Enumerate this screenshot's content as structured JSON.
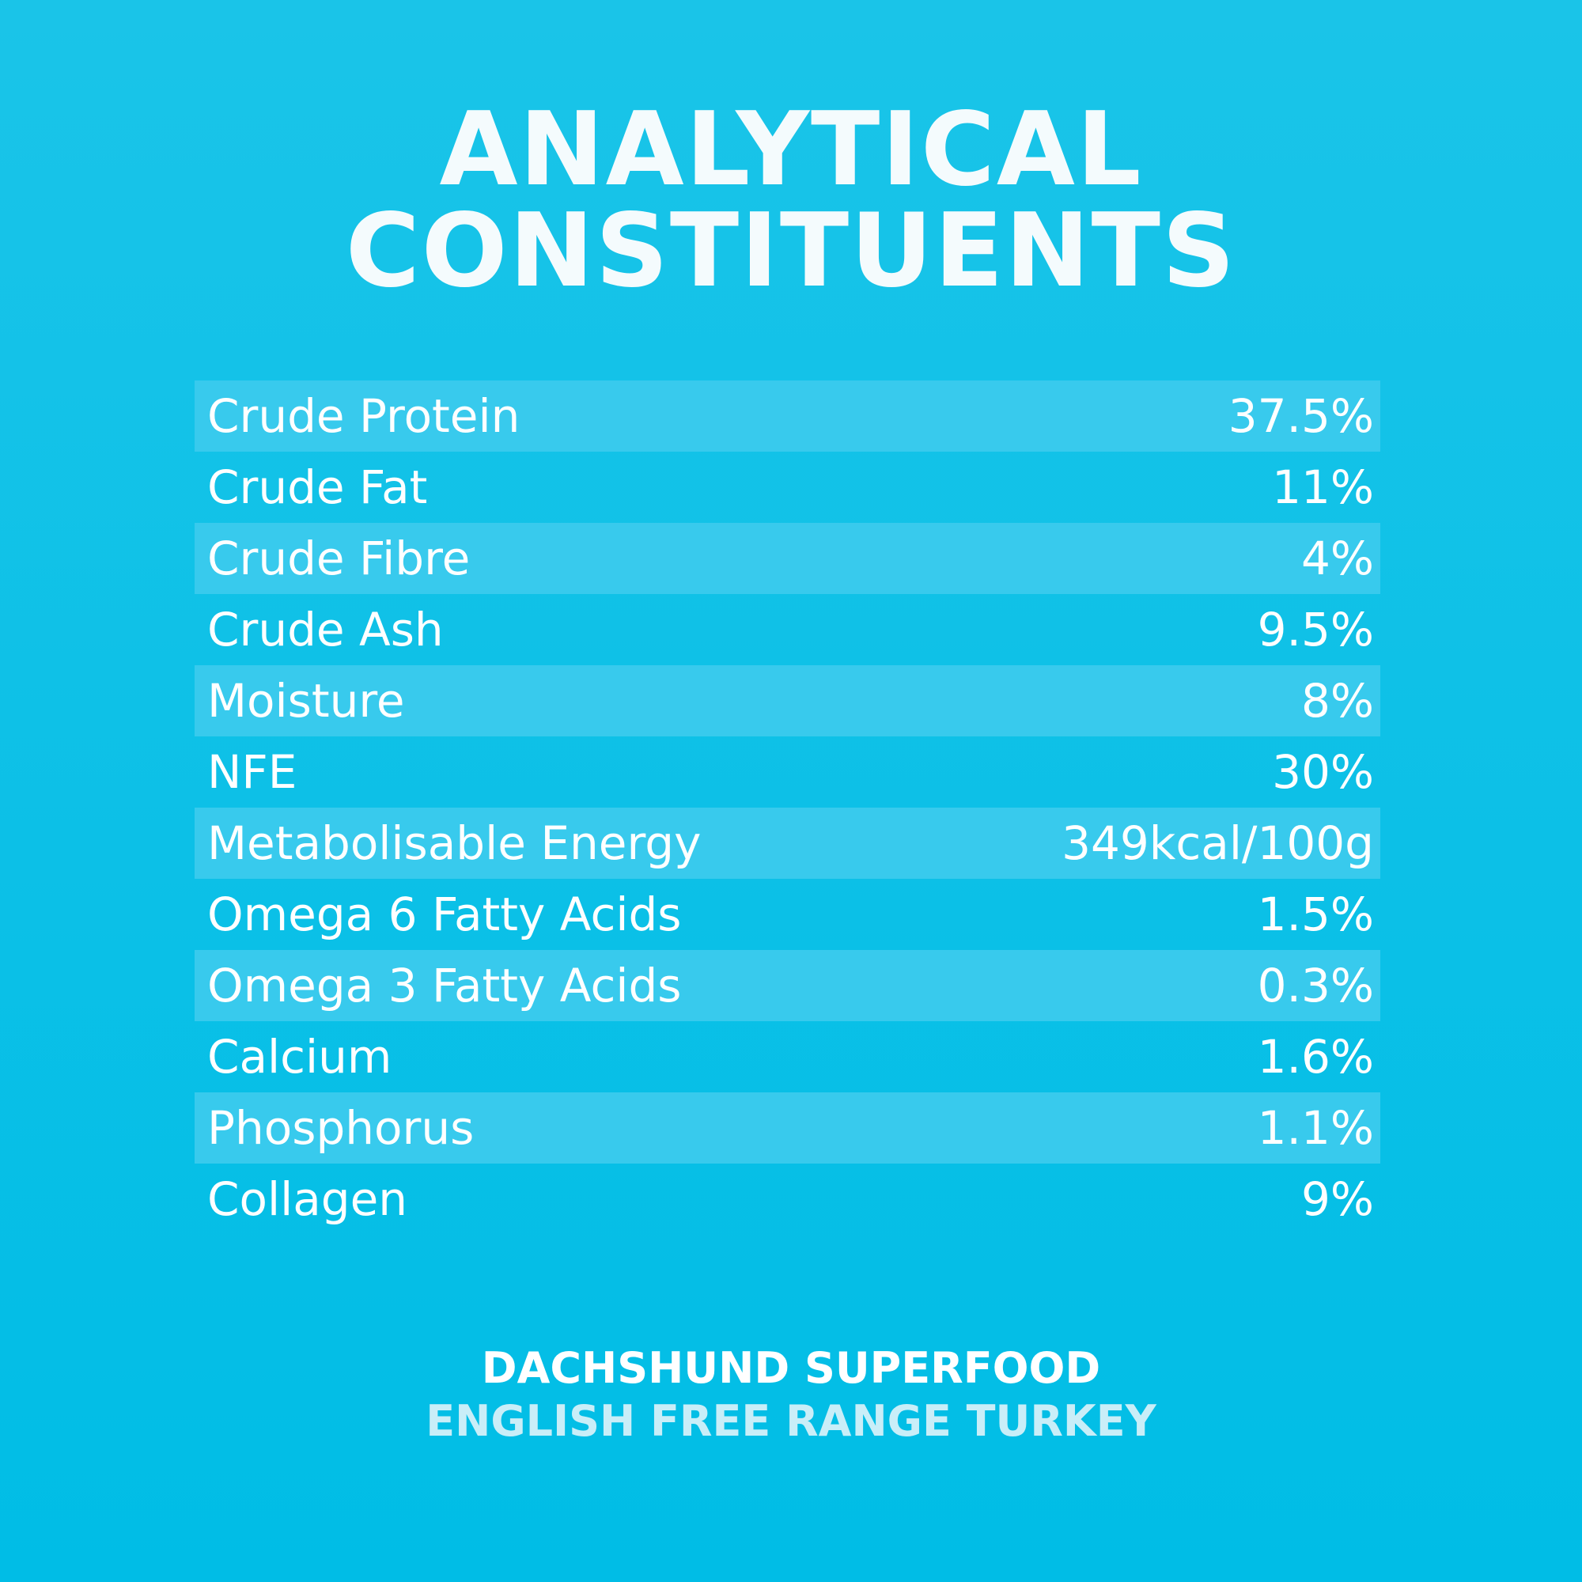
{
  "header": {
    "title_lines": [
      "ANALYTICAL",
      "CONSTITUENTS"
    ]
  },
  "table": {
    "rows": [
      [
        "Crude Protein",
        "37.5%"
      ],
      [
        "Crude Fat",
        "11%"
      ],
      [
        "Crude Fibre",
        "4%"
      ],
      [
        "Crude Ash",
        "9.5%"
      ],
      [
        "Moisture",
        "8%"
      ],
      [
        "NFE",
        "30%"
      ],
      [
        "Metabolisable Energy",
        "349kcal/100g"
      ],
      [
        "Omega 6 Fatty Acids",
        "1.5%"
      ],
      [
        "Omega 3 Fatty Acids",
        "0.3%"
      ],
      [
        "Calcium",
        "1.6%"
      ],
      [
        "Phosphorus",
        "1.1%"
      ],
      [
        "Collagen",
        "9%"
      ]
    ]
  },
  "footer": {
    "lines": [
      "DACHSHUND SUPERFOOD",
      "ENGLISH FREE RANGE TURKEY"
    ]
  }
}
